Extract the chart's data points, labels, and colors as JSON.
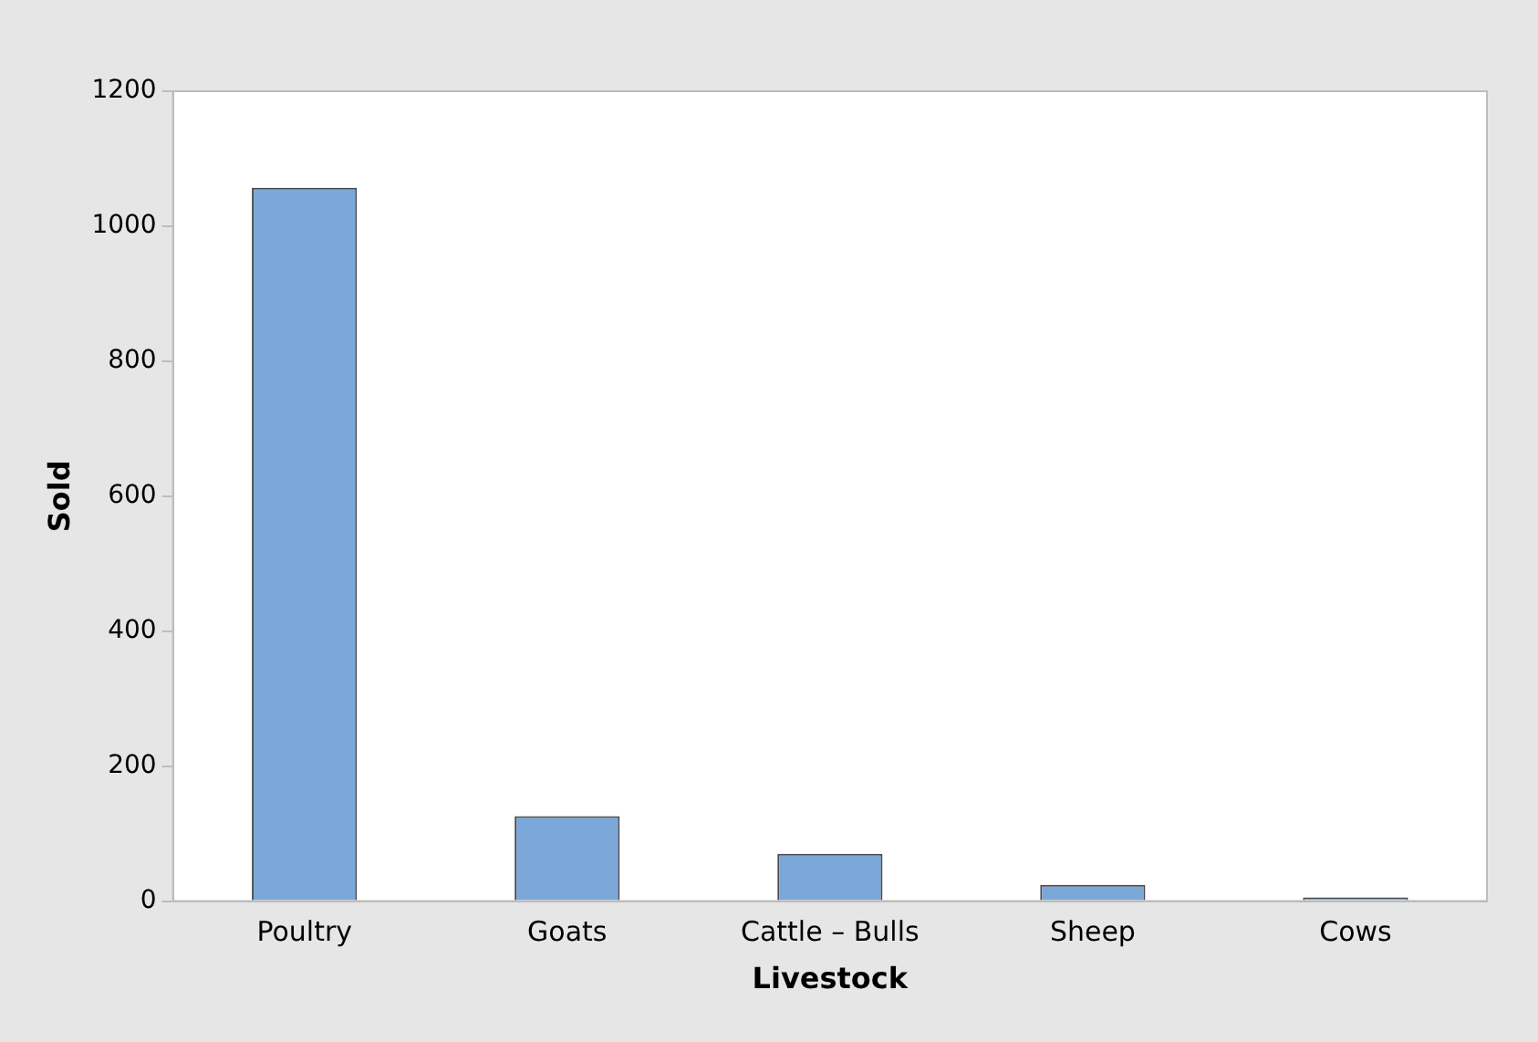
{
  "chart_data": {
    "type": "bar",
    "xlabel": "Livestock",
    "ylabel": "Sold",
    "categories": [
      "Poultry",
      "Goats",
      "Cattle – Bulls",
      "Sheep",
      "Cows"
    ],
    "values": [
      1057,
      126,
      70,
      24,
      2
    ],
    "color": "#7ba7d9",
    "ylim": [
      0,
      1200
    ],
    "yticks": [
      0,
      200,
      400,
      600,
      800,
      1000,
      1200
    ],
    "grid": false,
    "legend": false
  }
}
